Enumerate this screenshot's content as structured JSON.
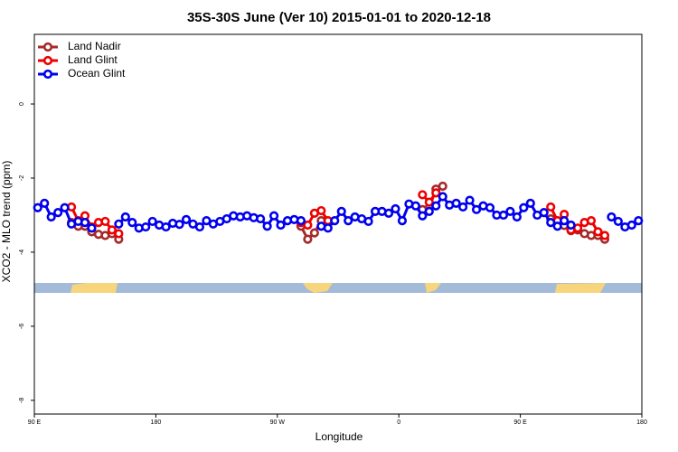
{
  "chart_data": {
    "type": "line",
    "title": "35S-30S June (Ver 10)   2015-01-01 to 2020-12-18",
    "x_label": "Longitude",
    "y_label": "XCO2 - MLO trend (ppm)",
    "xlim": [
      90,
      540
    ],
    "ylim": [
      -8.37,
      1.88
    ],
    "xticks": [
      {
        "value": 90,
        "label": "90 E"
      },
      180,
      {
        "value": 270,
        "label": "90 W"
      },
      {
        "value": 360,
        "label": "0"
      },
      {
        "value": 450,
        "label": "90 E"
      },
      {
        "value": 540,
        "label": "180"
      }
    ],
    "yticks": [
      0,
      -2,
      -4,
      -6,
      -8
    ],
    "legend": "top-left",
    "x": [
      92.5,
      97.5,
      102.5,
      107.5,
      112.5,
      117.5,
      122.5,
      127.5,
      132.5,
      137.5,
      142.5,
      147.5,
      152.5,
      157.5,
      162.5,
      167.5,
      172.5,
      177.5,
      182.5,
      187.5,
      192.5,
      197.5,
      202.5,
      207.5,
      212.5,
      217.5,
      222.5,
      227.5,
      232.5,
      237.5,
      242.5,
      247.5,
      252.5,
      257.5,
      262.5,
      267.5,
      272.5,
      277.5,
      282.5,
      287.5,
      292.5,
      297.5,
      302.5,
      307.5,
      312.5,
      317.5,
      322.5,
      327.5,
      332.5,
      337.5,
      342.5,
      347.5,
      352.5,
      357.5,
      362.5,
      367.5,
      372.5,
      377.5,
      382.5,
      387.5,
      392.5,
      397.5,
      402.5,
      407.5,
      412.5,
      417.5,
      422.5,
      427.5,
      432.5,
      437.5,
      442.5,
      447.5,
      452.5,
      457.5,
      462.5,
      467.5,
      472.5,
      477.5,
      482.5,
      487.5,
      492.5,
      497.5,
      502.5,
      507.5,
      512.5,
      517.5,
      522.5,
      527.5,
      532.5,
      537.5
    ],
    "series": [
      {
        "name": "Land Nadir",
        "color": "#a52a2a",
        "values": [
          null,
          null,
          null,
          null,
          null,
          -3.2,
          -3.3,
          -3.3,
          -3.45,
          -3.52,
          -3.55,
          -3.5,
          -3.65,
          null,
          null,
          null,
          null,
          null,
          null,
          null,
          null,
          null,
          null,
          null,
          null,
          null,
          null,
          null,
          null,
          null,
          null,
          null,
          null,
          null,
          null,
          null,
          null,
          null,
          null,
          -3.3,
          -3.65,
          -3.48,
          -3.15,
          -3.2,
          null,
          null,
          null,
          null,
          null,
          null,
          null,
          null,
          null,
          null,
          null,
          null,
          null,
          -2.85,
          -2.8,
          -2.3,
          -2.22,
          null,
          null,
          null,
          null,
          null,
          null,
          null,
          null,
          null,
          null,
          null,
          null,
          null,
          null,
          null,
          -3.1,
          -3.2,
          -3.28,
          -3.42,
          -3.4,
          -3.5,
          -3.55,
          -3.55,
          -3.65,
          null,
          null,
          null,
          null,
          null
        ]
      },
      {
        "name": "Land Glint",
        "color": "#ee0000",
        "values": [
          null,
          null,
          null,
          null,
          null,
          -2.78,
          -3.15,
          -3.02,
          -3.32,
          -3.2,
          -3.17,
          -3.4,
          -3.5,
          null,
          null,
          null,
          null,
          null,
          null,
          null,
          null,
          null,
          null,
          null,
          null,
          null,
          null,
          null,
          null,
          null,
          null,
          null,
          null,
          null,
          null,
          null,
          null,
          null,
          null,
          -3.2,
          -3.27,
          -2.95,
          -2.88,
          -3.15,
          null,
          null,
          null,
          null,
          null,
          null,
          null,
          null,
          null,
          null,
          null,
          null,
          null,
          -2.45,
          -2.65,
          -2.4,
          null,
          null,
          null,
          null,
          null,
          null,
          null,
          null,
          null,
          null,
          null,
          null,
          null,
          null,
          null,
          null,
          -2.78,
          -3.15,
          -2.98,
          -3.4,
          -3.35,
          -3.2,
          -3.15,
          -3.45,
          -3.55,
          null,
          null,
          null,
          null,
          null
        ]
      },
      {
        "name": "Ocean Glint",
        "color": "#0000ee",
        "values": [
          -2.8,
          -2.68,
          -3.05,
          -2.93,
          -2.8,
          -3.24,
          -3.17,
          -3.2,
          -3.35,
          null,
          null,
          null,
          -3.24,
          -3.05,
          -3.2,
          -3.35,
          -3.32,
          -3.17,
          -3.27,
          -3.32,
          -3.22,
          -3.25,
          -3.12,
          -3.24,
          -3.32,
          -3.15,
          -3.24,
          -3.17,
          -3.1,
          -3.02,
          -3.05,
          -3.02,
          -3.07,
          -3.1,
          -3.3,
          -3.02,
          -3.27,
          -3.15,
          -3.12,
          -3.15,
          null,
          null,
          -3.3,
          -3.35,
          -3.15,
          -2.9,
          -3.15,
          -3.05,
          -3.1,
          -3.17,
          -2.9,
          -2.9,
          -2.95,
          -2.83,
          -3.15,
          -2.7,
          -2.75,
          -3.02,
          -2.9,
          -2.75,
          -2.5,
          -2.73,
          -2.68,
          -2.78,
          -2.6,
          -2.85,
          -2.75,
          -2.8,
          -3.0,
          -3.0,
          -2.9,
          -3.05,
          -2.8,
          -2.68,
          -3.0,
          -2.93,
          -3.2,
          -3.3,
          -3.15,
          -3.27,
          null,
          null,
          null,
          null,
          null,
          -3.05,
          -3.17,
          -3.32,
          -3.27,
          -3.15
        ]
      }
    ]
  }
}
